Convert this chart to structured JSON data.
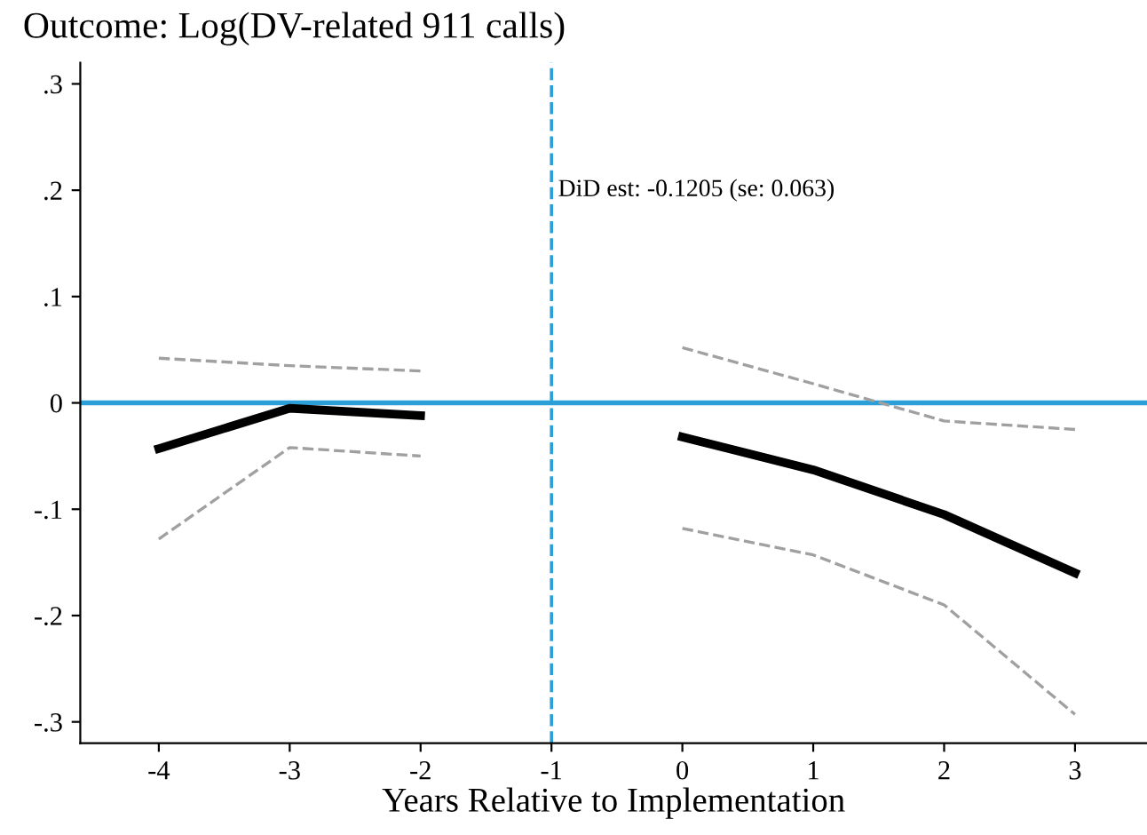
{
  "chart_data": {
    "type": "line",
    "title": "Outcome: Log(DV-related 911 calls)",
    "xlabel": "Years Relative to Implementation",
    "x": [
      -4,
      -3,
      -2,
      -1,
      0,
      1,
      2,
      3
    ],
    "series": [
      {
        "color": "#000000",
        "values": [
          -0.043,
          -0.005,
          -0.012,
          null,
          -0.032,
          -0.063,
          -0.105,
          -0.16
        ],
        "line_style": "solid"
      },
      {
        "color": "#a0a0a0",
        "values": [
          0.042,
          0.035,
          0.03,
          null,
          0.052,
          0.018,
          -0.017,
          -0.025
        ],
        "line_style": "dashed"
      },
      {
        "color": "#a0a0a0",
        "values": [
          -0.128,
          -0.042,
          -0.05,
          null,
          -0.118,
          -0.143,
          -0.19,
          -0.293
        ],
        "line_style": "dashed"
      }
    ],
    "xlim": [
      -4.6,
      3.55
    ],
    "xticks": [
      -4,
      -3,
      -2,
      -1,
      0,
      1,
      2,
      3
    ],
    "ylim": [
      -0.32,
      0.32
    ],
    "yticks": [
      {
        "value": -0.3,
        "label": "-.3"
      },
      {
        "value": -0.2,
        "label": "-.2"
      },
      {
        "value": -0.1,
        "label": "-.1"
      },
      {
        "value": 0,
        "label": "0"
      },
      {
        "value": 0.1,
        "label": ".1"
      },
      {
        "value": 0.2,
        "label": ".2"
      },
      {
        "value": 0.3,
        "label": ".3"
      }
    ],
    "ref_lines": [
      {
        "axis": "y",
        "value": 0,
        "color": "#2a9fd8",
        "line_style": "solid"
      },
      {
        "axis": "x",
        "value": -1,
        "color": "#2a9fd8",
        "line_style": "dashed"
      }
    ],
    "annotations": [
      {
        "text": "DiD est: -0.1205 (se: 0.063)",
        "x": -0.95,
        "y": 0.2
      }
    ],
    "grid": false,
    "legend": false,
    "marker": "none"
  }
}
